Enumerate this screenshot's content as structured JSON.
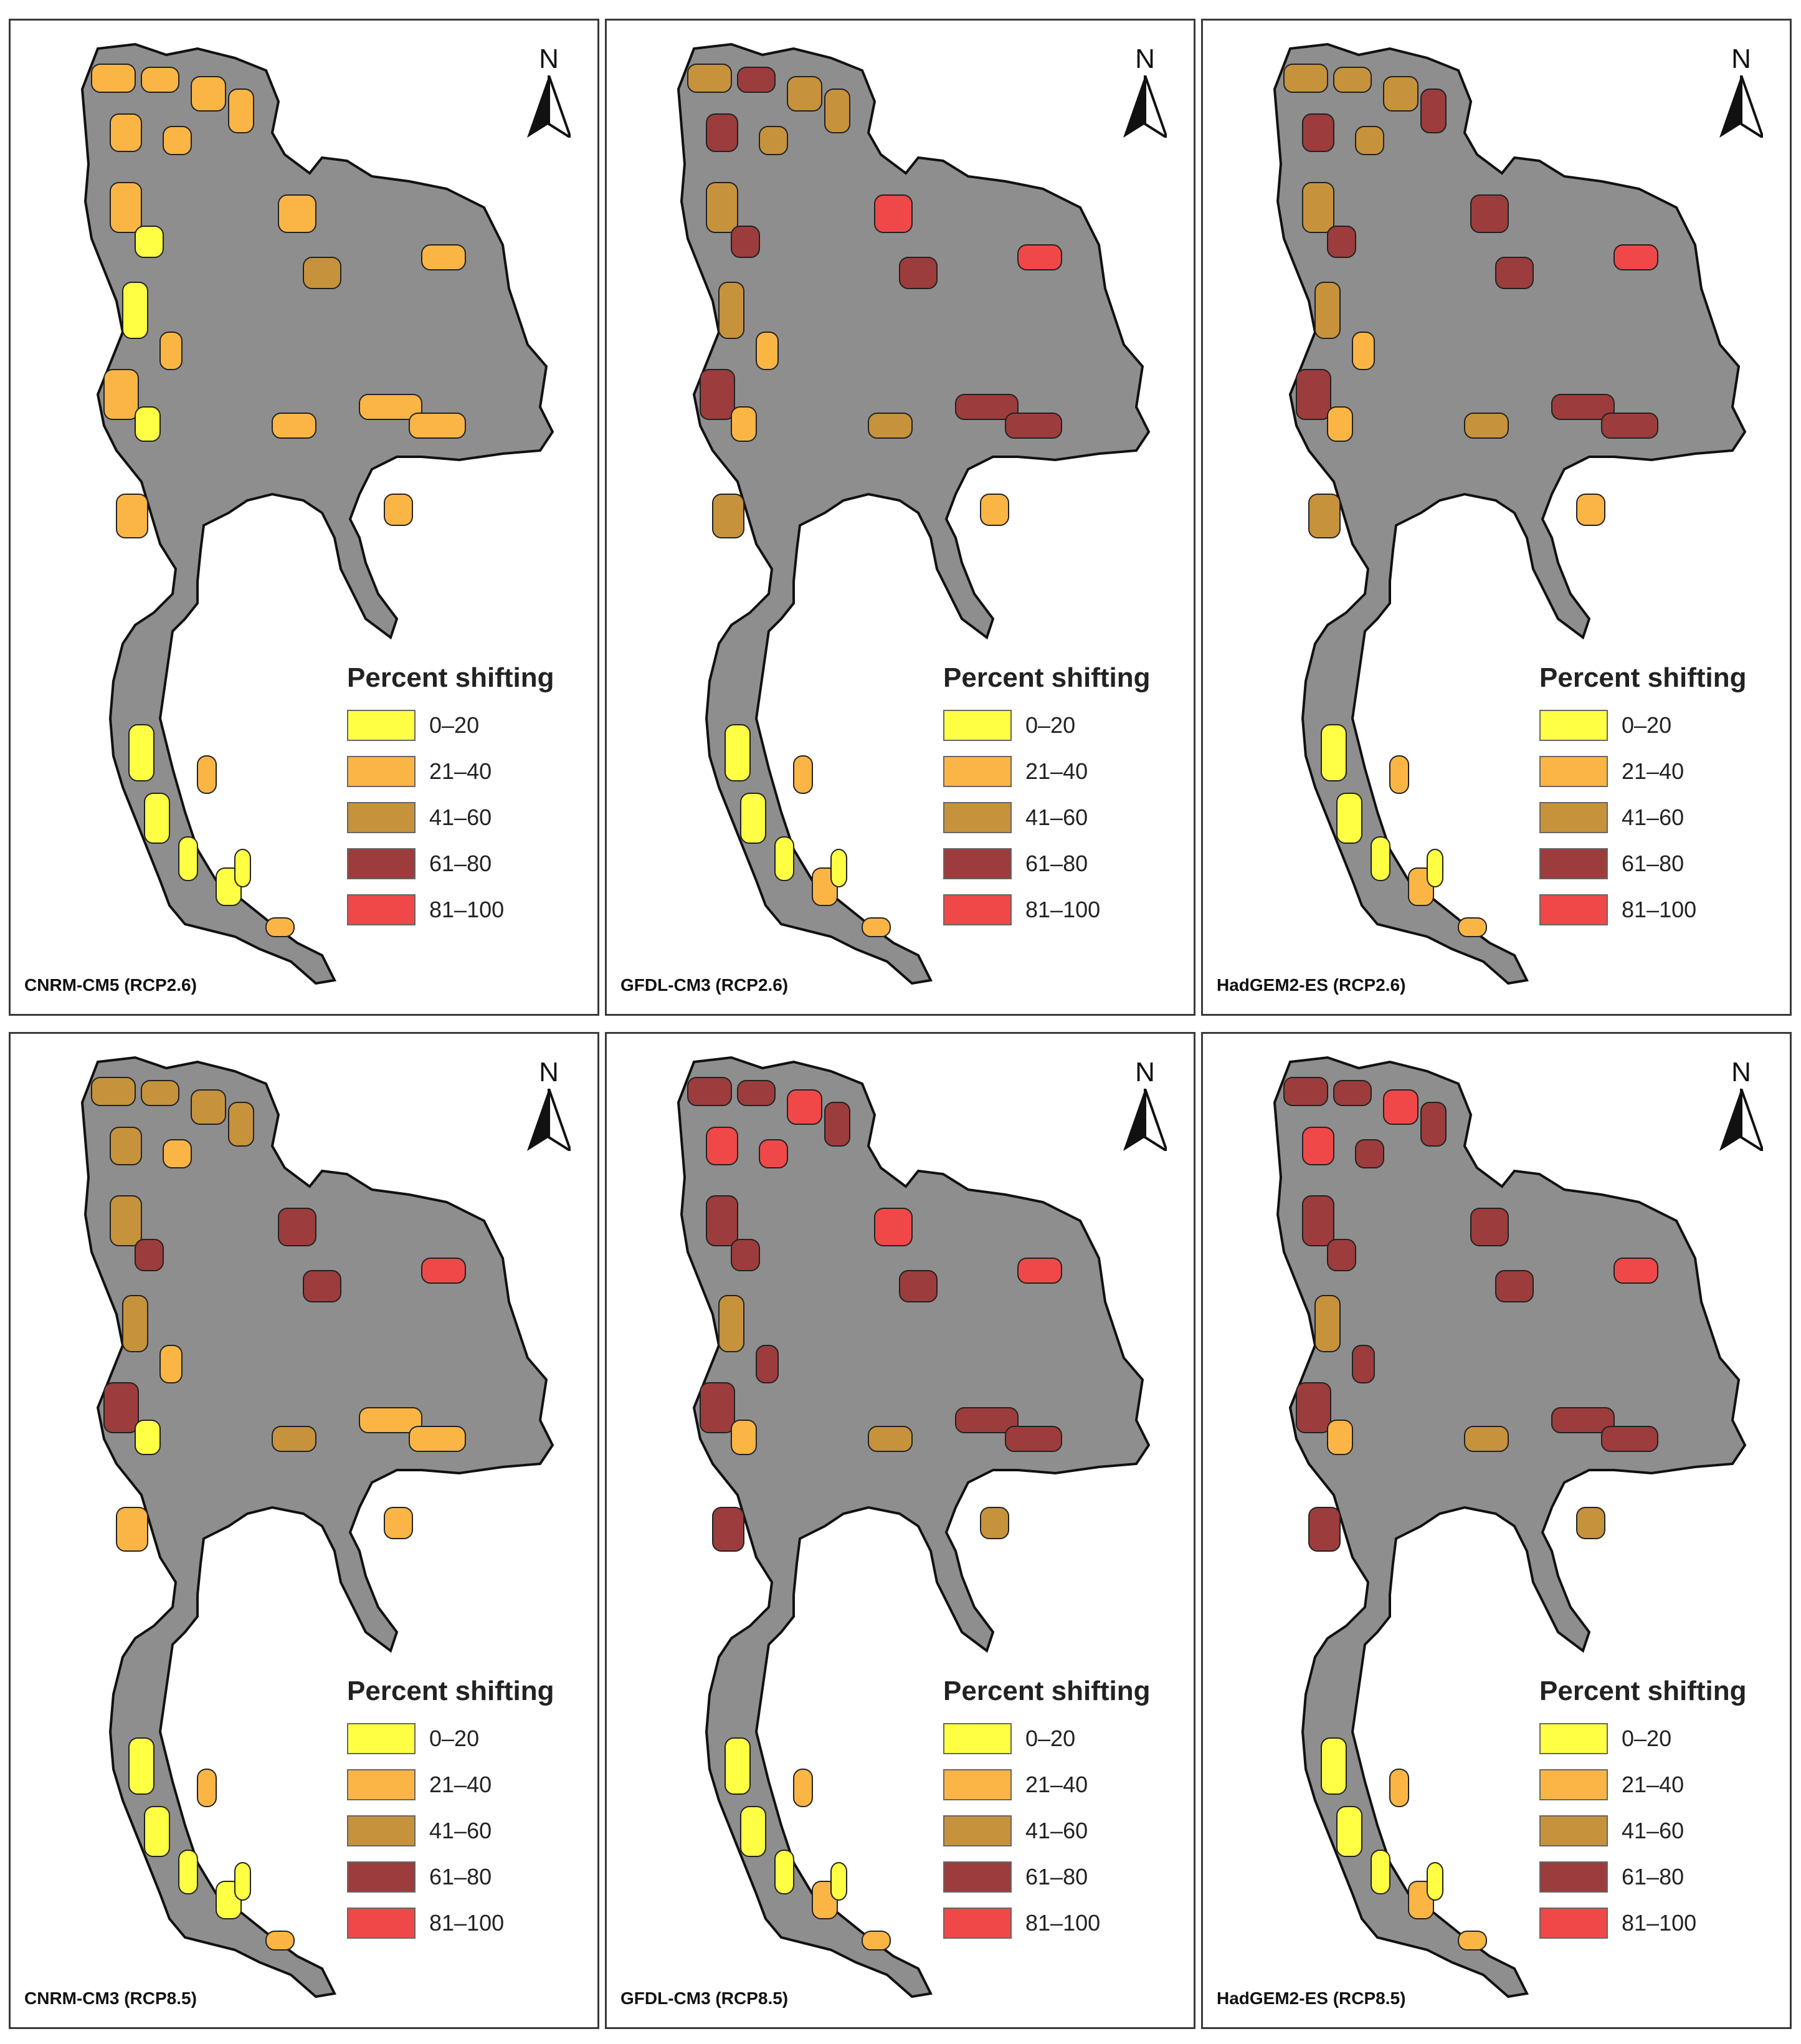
{
  "legend_title": "Percent shifting",
  "north_label": "N",
  "classes": [
    {
      "label": "0–20",
      "color": "#ffff44"
    },
    {
      "label": "21–40",
      "color": "#fbb545"
    },
    {
      "label": "41–60",
      "color": "#c6923c"
    },
    {
      "label": "61–80",
      "color": "#9c3c3c"
    },
    {
      "label": "81–100",
      "color": "#f04848"
    }
  ],
  "land_color": "#8e8e8e",
  "panels": [
    {
      "caption": "CNRM-CM5 (RCP2.6)"
    },
    {
      "caption": "GFDL-CM3 (RCP2.6)"
    },
    {
      "caption": "HadGEM2-ES (RCP2.6)"
    },
    {
      "caption": "CNRM-CM3 (RCP8.5)"
    },
    {
      "caption": "GFDL-CM3 (RCP8.5)"
    },
    {
      "caption": "HadGEM2-ES (RCP8.5)"
    }
  ]
}
